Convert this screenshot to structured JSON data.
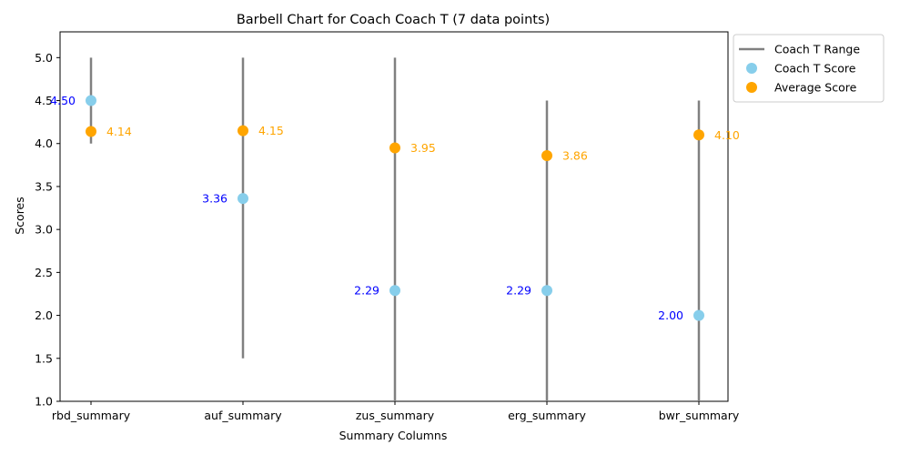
{
  "chart_data": {
    "type": "barbell",
    "title": "Barbell Chart for Coach Coach T (7 data points)",
    "xlabel": "Summary Columns",
    "ylabel": "Scores",
    "ylim": [
      1.0,
      5.3
    ],
    "yticks": [
      "1.0",
      "1.5",
      "2.0",
      "2.5",
      "3.0",
      "3.5",
      "4.0",
      "4.5",
      "5.0"
    ],
    "categories": [
      "rbd_summary",
      "auf_summary",
      "zus_summary",
      "erg_summary",
      "bwr_summary"
    ],
    "ranges": [
      {
        "min": 4.0,
        "max": 5.0
      },
      {
        "min": 1.5,
        "max": 5.0
      },
      {
        "min": 1.0,
        "max": 5.0
      },
      {
        "min": 1.0,
        "max": 4.5
      },
      {
        "min": 1.0,
        "max": 4.5
      }
    ],
    "series": [
      {
        "name": "Coach T Score",
        "values": [
          4.5,
          3.36,
          2.29,
          2.29,
          2.0
        ],
        "labels": [
          "4.50",
          "3.36",
          "2.29",
          "2.29",
          "2.00"
        ]
      },
      {
        "name": "Average Score",
        "values": [
          4.14,
          4.15,
          3.95,
          3.86,
          4.1
        ],
        "labels": [
          "4.14",
          "4.15",
          "3.95",
          "3.86",
          "4.10"
        ]
      }
    ],
    "legend": {
      "placement": "outside-top-right",
      "entries": [
        "Coach T Range",
        "Coach T Score",
        "Average Score"
      ]
    },
    "colors": {
      "range": "#808080",
      "score": "#87ceeb",
      "average": "#ffa500",
      "score_label": "#0000ff",
      "average_label": "#ffa500"
    },
    "grid": false
  }
}
